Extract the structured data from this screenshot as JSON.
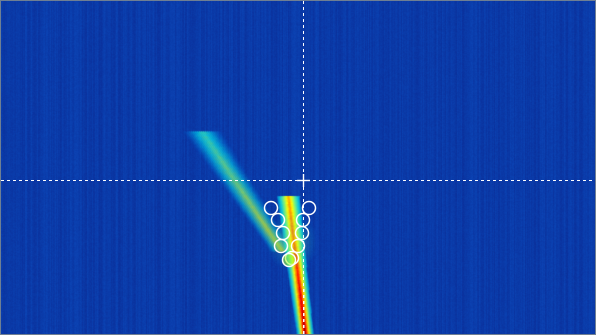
{
  "view": {
    "type": "spectrogram-heatmap",
    "colormap": "jet",
    "colors": {
      "background": "#0b3aa8",
      "crosshair": "#ffffff",
      "marker_stroke": "#ffffff",
      "trace_hot": "#c0140a",
      "trace_warm": "#ff9a10",
      "trace_mid": "#e8f02a",
      "trace_cool": "#2fd26a",
      "trace_faint": "#1e8fd0"
    }
  },
  "crosshair": {
    "visible": true,
    "style": "dashed",
    "center_marker": "plus"
  },
  "markers": {
    "shape": "circle",
    "count": 10,
    "highlighted_index": 9
  }
}
